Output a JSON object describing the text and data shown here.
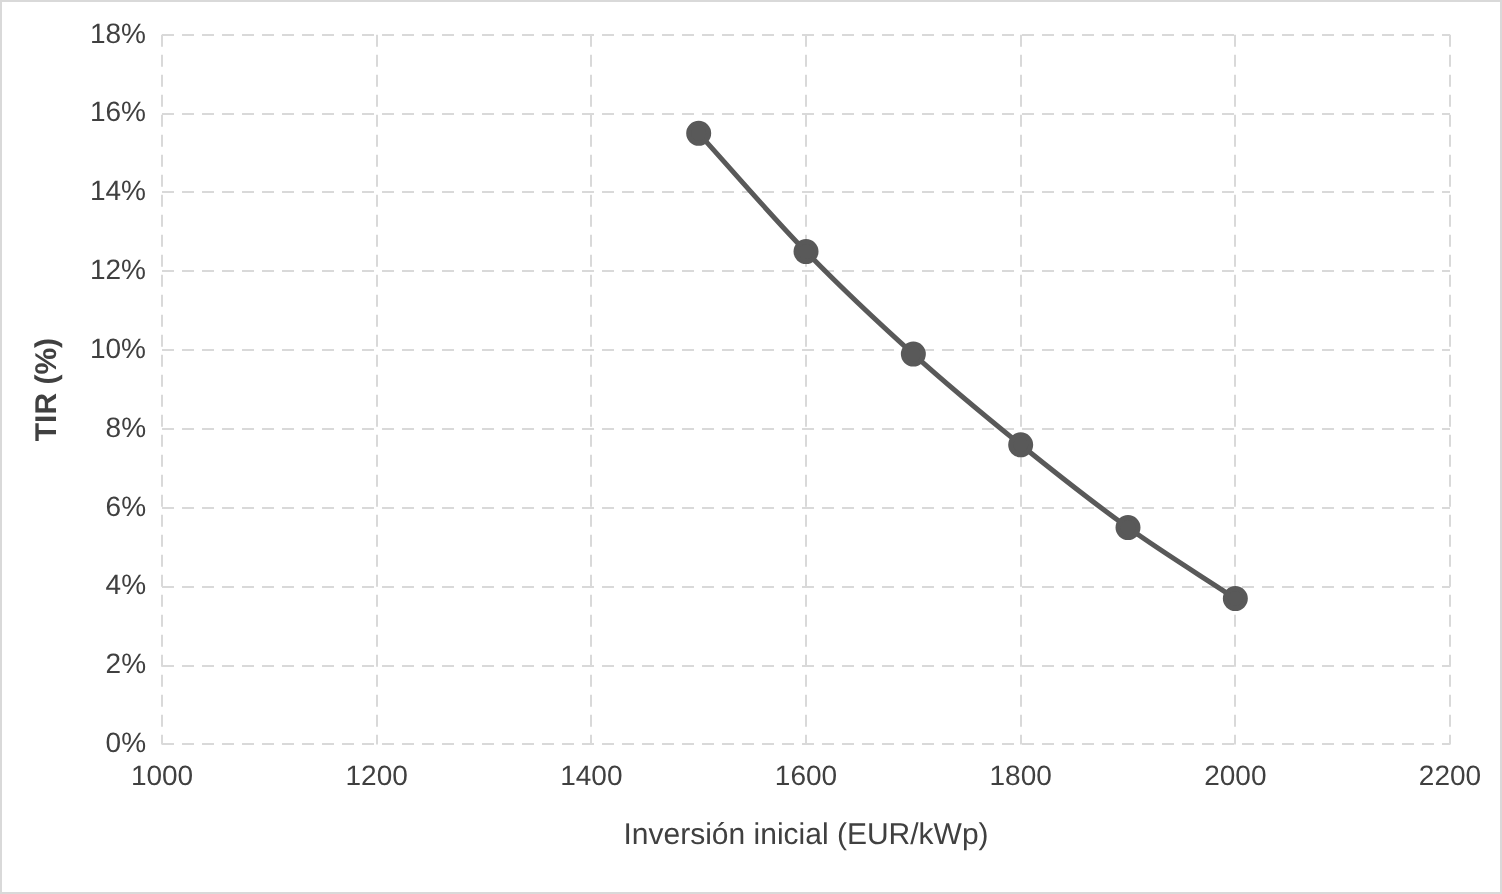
{
  "chart_data": {
    "type": "line",
    "xlabel": "Inversión inicial (EUR/kWp)",
    "ylabel": "TIR (%)",
    "x": [
      1500,
      1600,
      1700,
      1800,
      1900,
      2000
    ],
    "series": [
      {
        "color": "#595959",
        "values": [
          15.5,
          12.5,
          9.9,
          7.6,
          5.5,
          3.7
        ]
      }
    ],
    "xlim": [
      1000,
      2200
    ],
    "xticks": [
      1000,
      1200,
      1400,
      1600,
      1800,
      2000,
      2200
    ],
    "ylim": [
      0,
      18
    ],
    "yticks": [
      {
        "value": 0,
        "label": "0%"
      },
      {
        "value": 2,
        "label": "2%"
      },
      {
        "value": 4,
        "label": "4%"
      },
      {
        "value": 6,
        "label": "6%"
      },
      {
        "value": 8,
        "label": "8%"
      },
      {
        "value": 10,
        "label": "10%"
      },
      {
        "value": 12,
        "label": "12%"
      },
      {
        "value": 14,
        "label": "14%"
      },
      {
        "value": 16,
        "label": "16%"
      },
      {
        "value": 18,
        "label": "18%"
      }
    ],
    "grid": true,
    "legend": false,
    "marker": "circle",
    "line_style": "solid"
  }
}
